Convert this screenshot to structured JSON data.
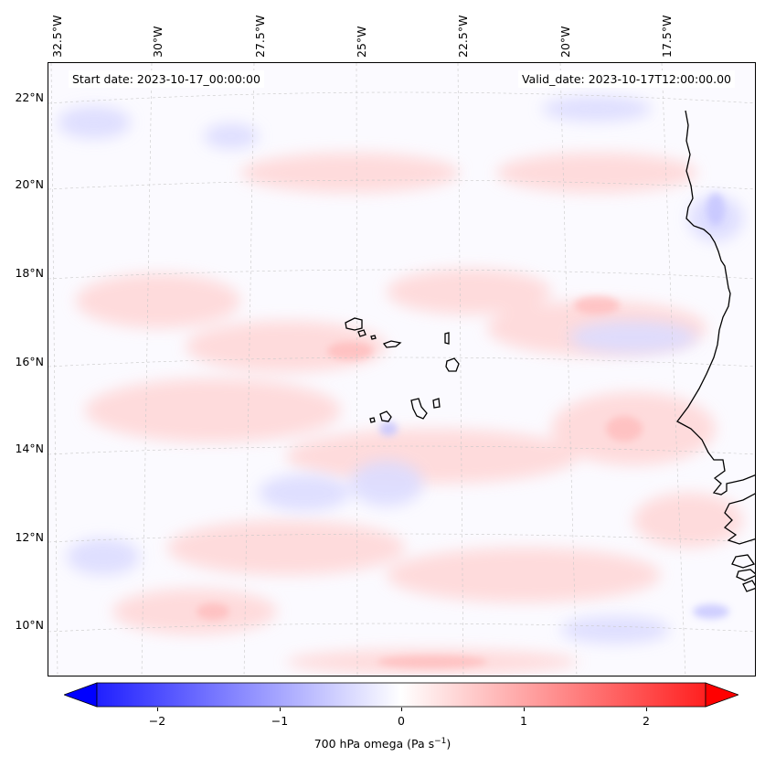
{
  "map": {
    "start_date": "Start date: 2023-10-17_00:00:00",
    "valid_date": "Valid_date: 2023-10-17T12:00:00.00",
    "longitude_labels": [
      "32.5°W",
      "30°W",
      "27.5°W",
      "25°W",
      "22.5°W",
      "20°W",
      "17.5°W"
    ],
    "latitude_labels": [
      "22°N",
      "20°N",
      "18°N",
      "16°N",
      "14°N",
      "12°N",
      "10°N"
    ],
    "coastline_color": "#000000",
    "gridline_color": "#c8c8c8",
    "field": "700 hPa vertical velocity (omega), mostly weak values near 0 with light red and blue patches"
  },
  "colorbar": {
    "label": "700 hPa omega (Pa s",
    "label_sup": "−1",
    "label_close": ")",
    "ticks": [
      "−2",
      "−1",
      "0",
      "1",
      "2"
    ],
    "tick_values": [
      -2,
      -1,
      0,
      1,
      2
    ],
    "range": [
      -2.75,
      2.75
    ],
    "colors": {
      "min": "#0000ff",
      "mid": "#ffffff",
      "max": "#ff0000"
    },
    "extend": "both"
  }
}
